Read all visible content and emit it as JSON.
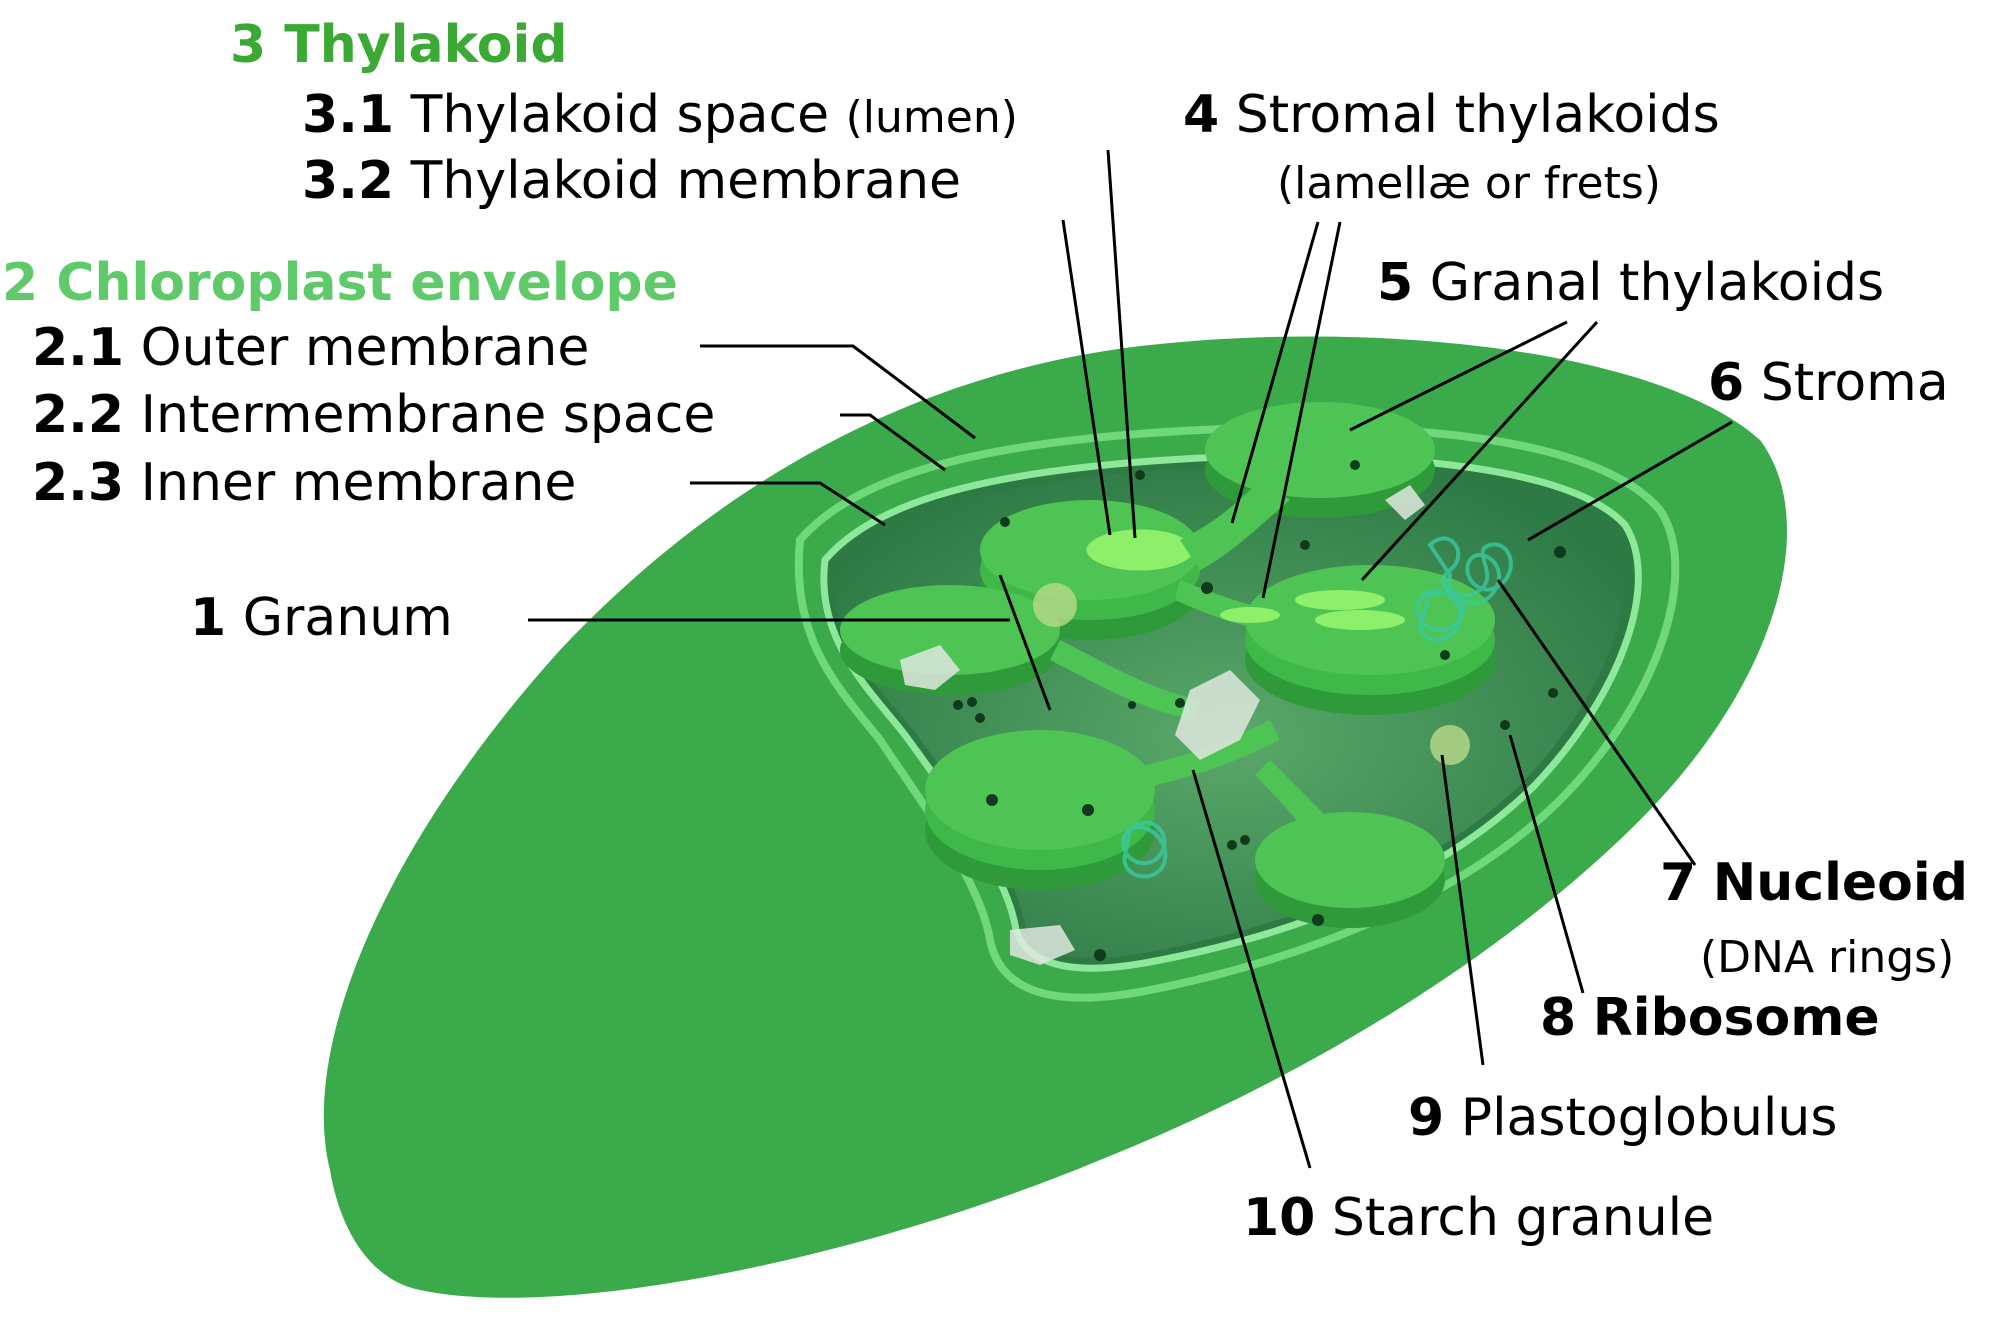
{
  "labels": {
    "thylakoid": {
      "text": "3 Thylakoid",
      "color": "#3aaa35"
    },
    "thylakoid_space": {
      "num": "3.1",
      "text": "Thylakoid space",
      "note": "(lumen)"
    },
    "thylakoid_membrane": {
      "num": "3.2",
      "text": "Thylakoid membrane"
    },
    "envelope": {
      "text": "2 Chloroplast envelope",
      "color": "#5fca6a"
    },
    "outer_membrane": {
      "num": "2.1",
      "text": "Outer membrane"
    },
    "intermembrane_space": {
      "num": "2.2",
      "text": "Intermembrane space"
    },
    "inner_membrane": {
      "num": "2.3",
      "text": "Inner membrane"
    },
    "granum": {
      "num": "1",
      "text": "Granum"
    },
    "stromal_thylakoids": {
      "num": "4",
      "text": "Stromal thylakoids",
      "note": "(lamellæ or frets)"
    },
    "granal_thylakoids": {
      "num": "5",
      "text": "Granal thylakoids"
    },
    "stroma": {
      "num": "6",
      "text": "Stroma"
    },
    "nucleoid": {
      "num": "7",
      "text": "Nucleoid",
      "note": "(DNA rings)"
    },
    "ribosome": {
      "num": "8",
      "text": "Ribosome"
    },
    "plastoglobulus": {
      "num": "9",
      "text": "Plastoglobulus"
    },
    "starch_granule": {
      "num": "10",
      "text": "Starch granule"
    }
  },
  "colors": {
    "outer_body": "#3aaa4a",
    "interior": "#2d7a45",
    "membrane_light": "#7de08a",
    "granum_fill": "#4ec455",
    "granum_light": "#8ef06a",
    "starch": "#dfe8df",
    "nucleoid": "#3ac9a0",
    "ribosome": "#0f3a1c",
    "plastoglobulus": "#b9d98a"
  }
}
